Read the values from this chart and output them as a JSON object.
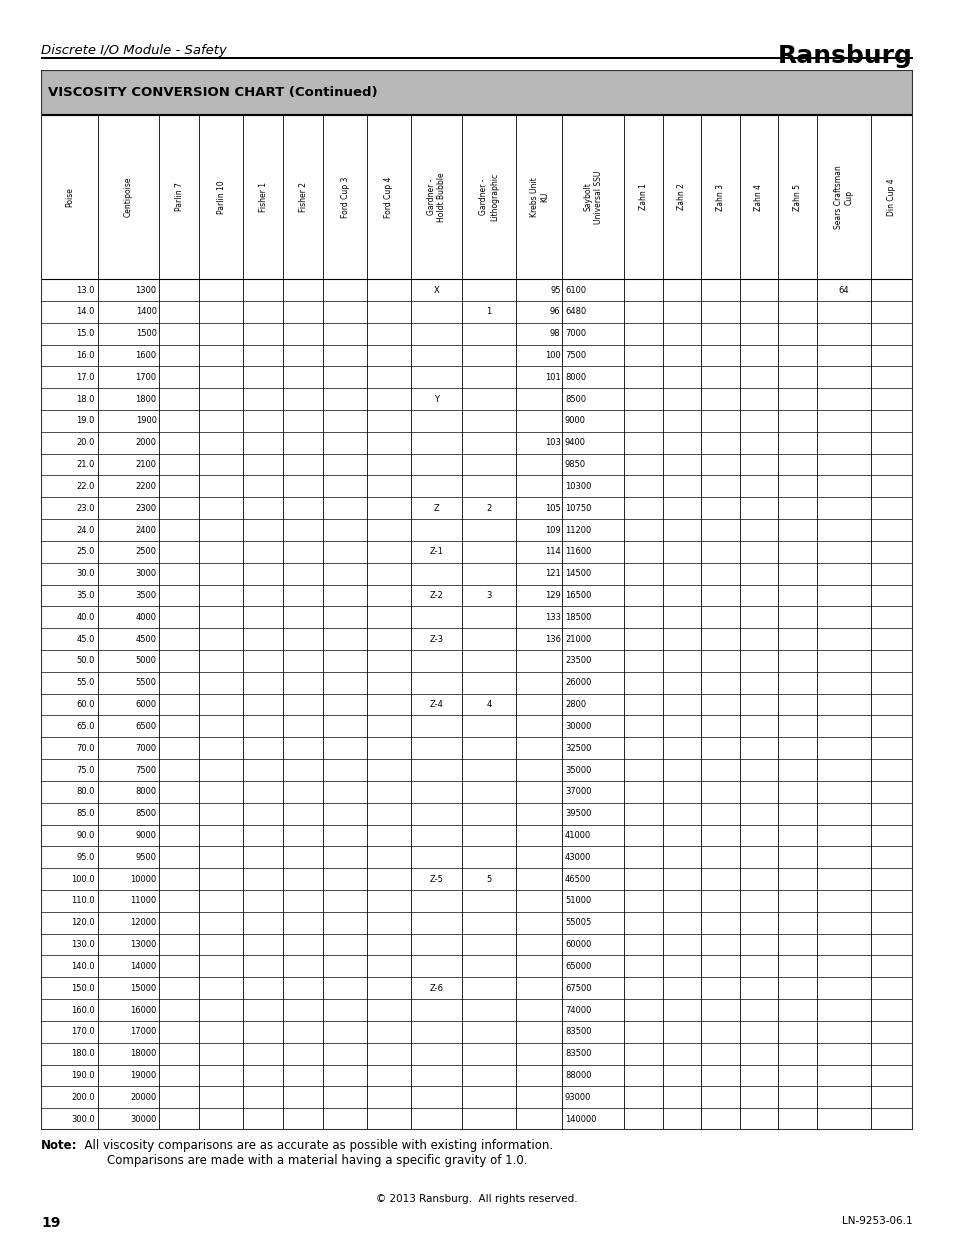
{
  "title": "VISCOSITY CONVERSION CHART (Continued)",
  "header_bg": "#b8b8b8",
  "page_header_left": "Discrete I/O Module - Safety",
  "page_header_right": "Ransburg",
  "footer_note_bold": "Note:",
  "footer_note_regular": "  All viscosity comparisons are as accurate as possible with existing information.\n        Comparisons are made with a material having a specific gravity of 1.0.",
  "footer_copy": "© 2013 Ransburg.  All rights reserved.",
  "footer_page": "19",
  "footer_right": "LN-9253-06.1",
  "columns": [
    "Poise",
    "Centipoise",
    "Parlin 7",
    "Parlin 10",
    "Fisher 1",
    "Fisher 2",
    "Ford Cup 3",
    "Ford Cup 4",
    "Gardner -\nHoldt Bubble",
    "Gardner -\nLithographic",
    "Krebs Unit\nKU",
    "Saybolt\nUniversal SSU",
    "Zahn 1",
    "Zahn 2",
    "Zahn 3",
    "Zahn 4",
    "Zahn 5",
    "Sears Craftsman\nCup",
    "Din Cup 4"
  ],
  "col_widths_rel": [
    1.1,
    1.2,
    0.78,
    0.85,
    0.78,
    0.78,
    0.85,
    0.85,
    1.0,
    1.05,
    0.9,
    1.2,
    0.75,
    0.75,
    0.75,
    0.75,
    0.75,
    1.05,
    0.82
  ],
  "rows": [
    [
      "13.0",
      "1300",
      "",
      "",
      "",
      "",
      "",
      "",
      "X",
      "",
      "95",
      "6100",
      "",
      "",
      "",
      "",
      "",
      "64",
      ""
    ],
    [
      "14.0",
      "1400",
      "",
      "",
      "",
      "",
      "",
      "",
      "",
      "1",
      "96",
      "6480",
      "",
      "",
      "",
      "",
      "",
      "",
      ""
    ],
    [
      "15.0",
      "1500",
      "",
      "",
      "",
      "",
      "",
      "",
      "",
      "",
      "98",
      "7000",
      "",
      "",
      "",
      "",
      "",
      "",
      ""
    ],
    [
      "16.0",
      "1600",
      "",
      "",
      "",
      "",
      "",
      "",
      "",
      "",
      "100",
      "7500",
      "",
      "",
      "",
      "",
      "",
      "",
      ""
    ],
    [
      "17.0",
      "1700",
      "",
      "",
      "",
      "",
      "",
      "",
      "",
      "",
      "101",
      "8000",
      "",
      "",
      "",
      "",
      "",
      "",
      ""
    ],
    [
      "18.0",
      "1800",
      "",
      "",
      "",
      "",
      "",
      "",
      "Y",
      "",
      "",
      "8500",
      "",
      "",
      "",
      "",
      "",
      "",
      ""
    ],
    [
      "19.0",
      "1900",
      "",
      "",
      "",
      "",
      "",
      "",
      "",
      "",
      "",
      "9000",
      "",
      "",
      "",
      "",
      "",
      "",
      ""
    ],
    [
      "20.0",
      "2000",
      "",
      "",
      "",
      "",
      "",
      "",
      "",
      "",
      "103",
      "9400",
      "",
      "",
      "",
      "",
      "",
      "",
      ""
    ],
    [
      "21.0",
      "2100",
      "",
      "",
      "",
      "",
      "",
      "",
      "",
      "",
      "",
      "9850",
      "",
      "",
      "",
      "",
      "",
      "",
      ""
    ],
    [
      "22.0",
      "2200",
      "",
      "",
      "",
      "",
      "",
      "",
      "",
      "",
      "",
      "10300",
      "",
      "",
      "",
      "",
      "",
      "",
      ""
    ],
    [
      "23.0",
      "2300",
      "",
      "",
      "",
      "",
      "",
      "",
      "Z",
      "2",
      "105",
      "10750",
      "",
      "",
      "",
      "",
      "",
      "",
      ""
    ],
    [
      "24.0",
      "2400",
      "",
      "",
      "",
      "",
      "",
      "",
      "",
      "",
      "109",
      "11200",
      "",
      "",
      "",
      "",
      "",
      "",
      ""
    ],
    [
      "25.0",
      "2500",
      "",
      "",
      "",
      "",
      "",
      "",
      "Z-1",
      "",
      "114",
      "11600",
      "",
      "",
      "",
      "",
      "",
      "",
      ""
    ],
    [
      "30.0",
      "3000",
      "",
      "",
      "",
      "",
      "",
      "",
      "",
      "",
      "121",
      "14500",
      "",
      "",
      "",
      "",
      "",
      "",
      ""
    ],
    [
      "35.0",
      "3500",
      "",
      "",
      "",
      "",
      "",
      "",
      "Z-2",
      "3",
      "129",
      "16500",
      "",
      "",
      "",
      "",
      "",
      "",
      ""
    ],
    [
      "40.0",
      "4000",
      "",
      "",
      "",
      "",
      "",
      "",
      "",
      "",
      "133",
      "18500",
      "",
      "",
      "",
      "",
      "",
      "",
      ""
    ],
    [
      "45.0",
      "4500",
      "",
      "",
      "",
      "",
      "",
      "",
      "Z-3",
      "",
      "136",
      "21000",
      "",
      "",
      "",
      "",
      "",
      "",
      ""
    ],
    [
      "50.0",
      "5000",
      "",
      "",
      "",
      "",
      "",
      "",
      "",
      "",
      "",
      "23500",
      "",
      "",
      "",
      "",
      "",
      "",
      ""
    ],
    [
      "55.0",
      "5500",
      "",
      "",
      "",
      "",
      "",
      "",
      "",
      "",
      "",
      "26000",
      "",
      "",
      "",
      "",
      "",
      "",
      ""
    ],
    [
      "60.0",
      "6000",
      "",
      "",
      "",
      "",
      "",
      "",
      "Z-4",
      "4",
      "",
      "2800",
      "",
      "",
      "",
      "",
      "",
      "",
      ""
    ],
    [
      "65.0",
      "6500",
      "",
      "",
      "",
      "",
      "",
      "",
      "",
      "",
      "",
      "30000",
      "",
      "",
      "",
      "",
      "",
      "",
      ""
    ],
    [
      "70.0",
      "7000",
      "",
      "",
      "",
      "",
      "",
      "",
      "",
      "",
      "",
      "32500",
      "",
      "",
      "",
      "",
      "",
      "",
      ""
    ],
    [
      "75.0",
      "7500",
      "",
      "",
      "",
      "",
      "",
      "",
      "",
      "",
      "",
      "35000",
      "",
      "",
      "",
      "",
      "",
      "",
      ""
    ],
    [
      "80.0",
      "8000",
      "",
      "",
      "",
      "",
      "",
      "",
      "",
      "",
      "",
      "37000",
      "",
      "",
      "",
      "",
      "",
      "",
      ""
    ],
    [
      "85.0",
      "8500",
      "",
      "",
      "",
      "",
      "",
      "",
      "",
      "",
      "",
      "39500",
      "",
      "",
      "",
      "",
      "",
      "",
      ""
    ],
    [
      "90.0",
      "9000",
      "",
      "",
      "",
      "",
      "",
      "",
      "",
      "",
      "",
      "41000",
      "",
      "",
      "",
      "",
      "",
      "",
      ""
    ],
    [
      "95.0",
      "9500",
      "",
      "",
      "",
      "",
      "",
      "",
      "",
      "",
      "",
      "43000",
      "",
      "",
      "",
      "",
      "",
      "",
      ""
    ],
    [
      "100.0",
      "10000",
      "",
      "",
      "",
      "",
      "",
      "",
      "Z-5",
      "5",
      "",
      "46500",
      "",
      "",
      "",
      "",
      "",
      "",
      ""
    ],
    [
      "110.0",
      "11000",
      "",
      "",
      "",
      "",
      "",
      "",
      "",
      "",
      "",
      "51000",
      "",
      "",
      "",
      "",
      "",
      "",
      ""
    ],
    [
      "120.0",
      "12000",
      "",
      "",
      "",
      "",
      "",
      "",
      "",
      "",
      "",
      "55005",
      "",
      "",
      "",
      "",
      "",
      "",
      ""
    ],
    [
      "130.0",
      "13000",
      "",
      "",
      "",
      "",
      "",
      "",
      "",
      "",
      "",
      "60000",
      "",
      "",
      "",
      "",
      "",
      "",
      ""
    ],
    [
      "140.0",
      "14000",
      "",
      "",
      "",
      "",
      "",
      "",
      "",
      "",
      "",
      "65000",
      "",
      "",
      "",
      "",
      "",
      "",
      ""
    ],
    [
      "150.0",
      "15000",
      "",
      "",
      "",
      "",
      "",
      "",
      "Z-6",
      "",
      "",
      "67500",
      "",
      "",
      "",
      "",
      "",
      "",
      ""
    ],
    [
      "160.0",
      "16000",
      "",
      "",
      "",
      "",
      "",
      "",
      "",
      "",
      "",
      "74000",
      "",
      "",
      "",
      "",
      "",
      "",
      ""
    ],
    [
      "170.0",
      "17000",
      "",
      "",
      "",
      "",
      "",
      "",
      "",
      "",
      "",
      "83500",
      "",
      "",
      "",
      "",
      "",
      "",
      ""
    ],
    [
      "180.0",
      "18000",
      "",
      "",
      "",
      "",
      "",
      "",
      "",
      "",
      "",
      "83500",
      "",
      "",
      "",
      "",
      "",
      "",
      ""
    ],
    [
      "190.0",
      "19000",
      "",
      "",
      "",
      "",
      "",
      "",
      "",
      "",
      "",
      "88000",
      "",
      "",
      "",
      "",
      "",
      "",
      ""
    ],
    [
      "200.0",
      "20000",
      "",
      "",
      "",
      "",
      "",
      "",
      "",
      "",
      "",
      "93000",
      "",
      "",
      "",
      "",
      "",
      "",
      ""
    ],
    [
      "300.0",
      "30000",
      "",
      "",
      "",
      "",
      "",
      "",
      "",
      "",
      "",
      "140000",
      "",
      "",
      "",
      "",
      "",
      "",
      ""
    ]
  ]
}
